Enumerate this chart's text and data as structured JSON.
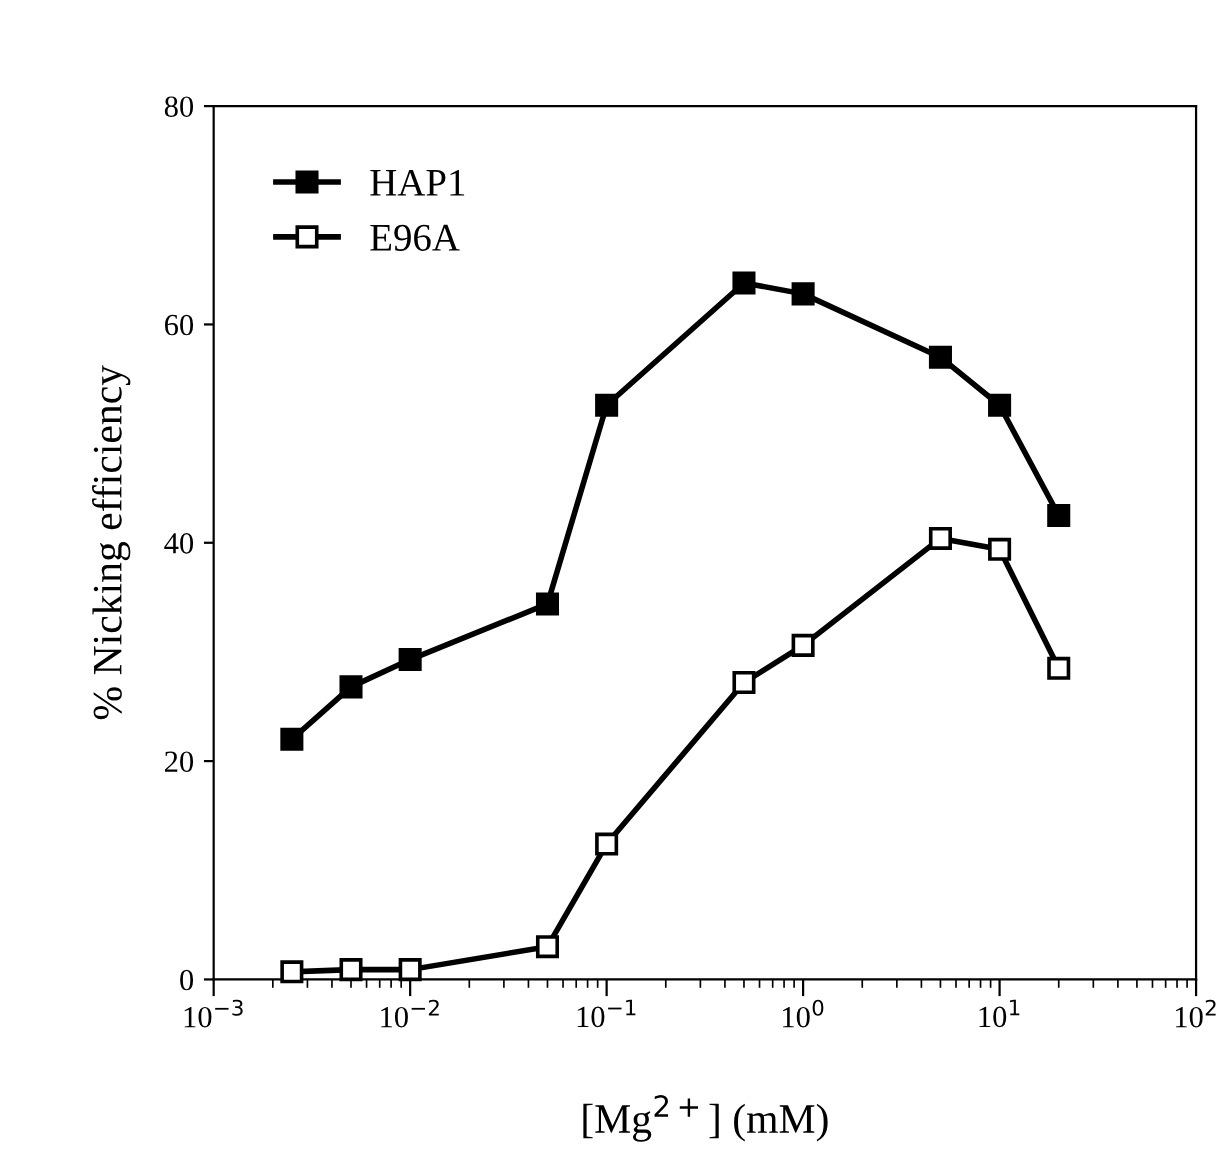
{
  "chart_data": {
    "type": "line",
    "xlabel": "[Mg$^{2+}$] (mM)",
    "ylabel": "% Nicking efficiency",
    "x": [
      0.0025,
      0.005,
      0.01,
      0.05,
      0.1,
      0.5,
      1,
      5,
      10,
      20
    ],
    "series": [
      {
        "name": "HAP1",
        "color": "#000000",
        "values": [
          22,
          26.8,
          29.3,
          34.4,
          52.6,
          63.8,
          62.8,
          57,
          52.6,
          42.5
        ]
      },
      {
        "name": "E96A",
        "color": "#000000",
        "values": [
          0.7,
          0.9,
          0.9,
          3,
          12.4,
          27.2,
          30.6,
          40.4,
          39.4,
          28.5
        ]
      }
    ],
    "log": "x",
    "xlim": [
      0.001,
      100
    ],
    "xticks": [
      {
        "value": 0.001,
        "label": "10$^{−3}$"
      },
      {
        "value": 0.01,
        "label": "10$^{−2}$"
      },
      {
        "value": 0.1,
        "label": "10$^{−1}$"
      },
      {
        "value": 1,
        "label": "10$^{0}$"
      },
      {
        "value": 10,
        "label": "10$^{1}$"
      },
      {
        "value": 100,
        "label": "10$^{2}$"
      }
    ],
    "ylim": [
      0,
      80
    ],
    "yticks": [
      0,
      20,
      40,
      60,
      80
    ],
    "marker": "square",
    "line_style": "solid",
    "grid": false,
    "legend": "top left"
  }
}
